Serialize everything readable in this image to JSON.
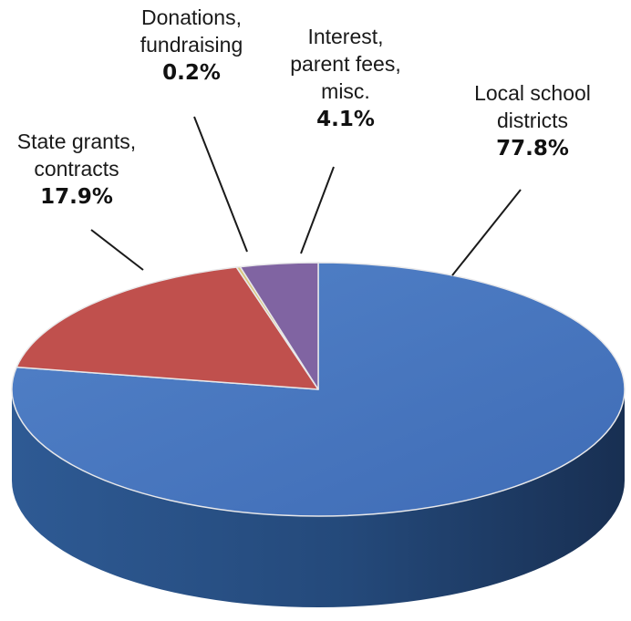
{
  "chart_data": {
    "type": "pie",
    "style": "3d",
    "slices": [
      {
        "name": "Local school districts",
        "name_lines": [
          "Local school",
          "districts"
        ],
        "value": 77.8,
        "value_label": "77.8%",
        "color": "#4472c4",
        "side_color": "#2c5089"
      },
      {
        "name": "State grants, contracts",
        "name_lines": [
          "State grants,",
          "contracts"
        ],
        "value": 17.9,
        "value_label": "17.9%",
        "color": "#c0504d",
        "side_color": "#8c3533"
      },
      {
        "name": "Donations, fundraising",
        "name_lines": [
          "Donations,",
          "fundraising"
        ],
        "value": 0.2,
        "value_label": "0.2%",
        "color": "#d9c77e",
        "side_color": "#a89a5d"
      },
      {
        "name": "Interest, parent fees, misc.",
        "name_lines": [
          "Interest,",
          "parent fees,",
          "misc."
        ],
        "value": 4.1,
        "value_label": "4.1%",
        "color": "#8064a2",
        "side_color": "#5a4674"
      }
    ]
  }
}
